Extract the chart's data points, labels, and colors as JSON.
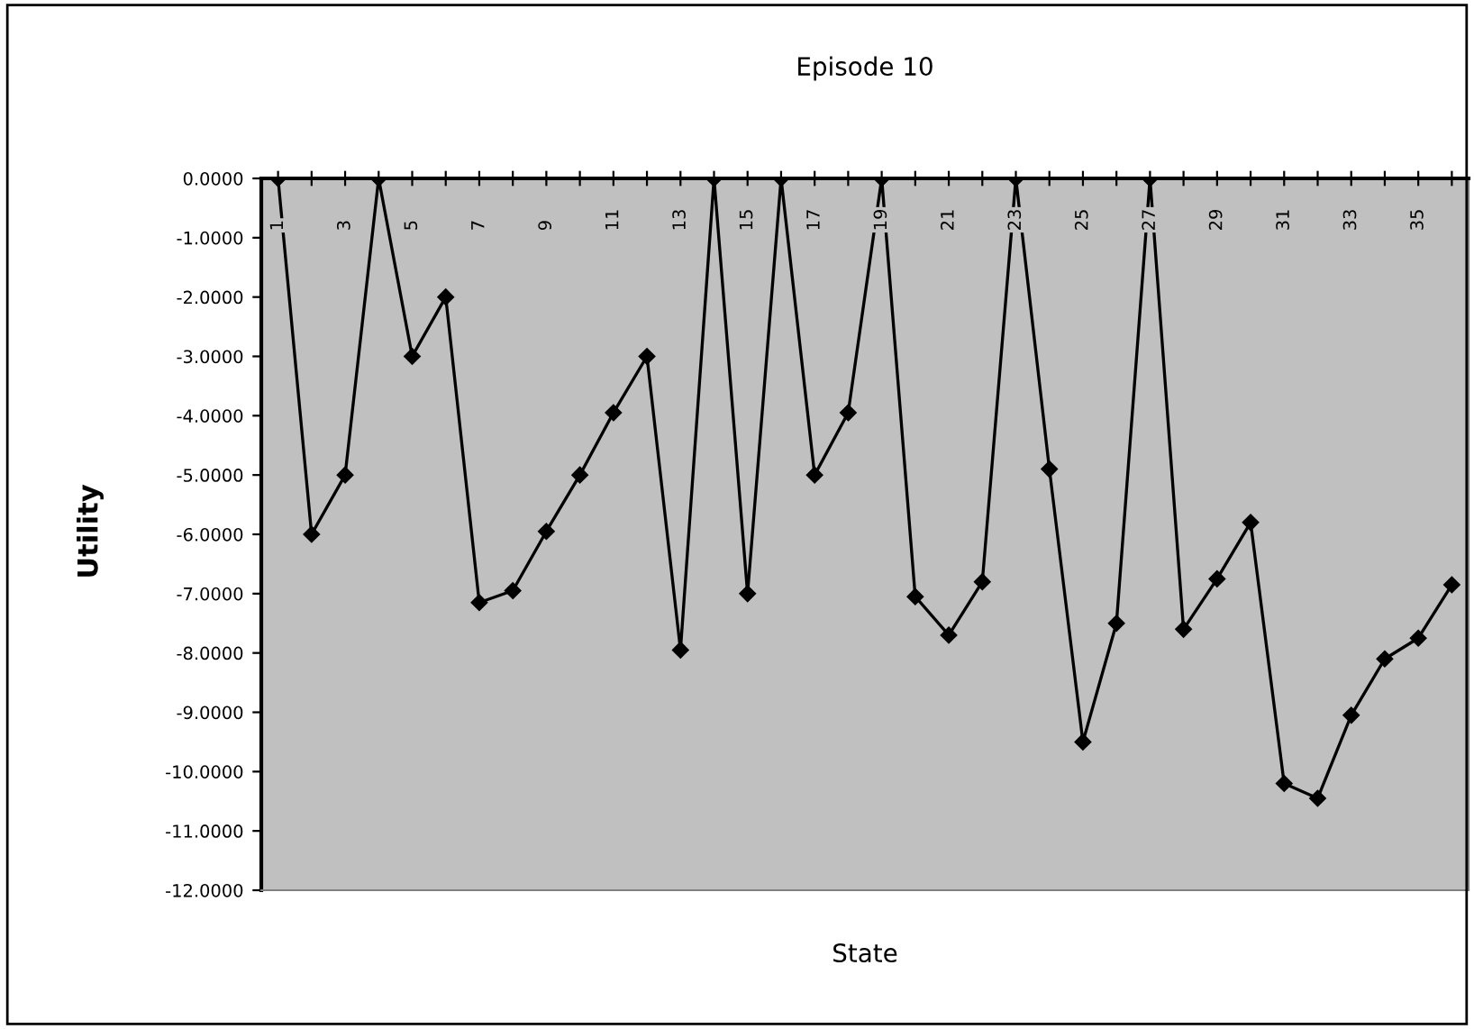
{
  "chart_data": {
    "type": "line",
    "title": "Episode 10",
    "xlabel": "State",
    "ylabel": "Utility",
    "categories": [
      "1",
      null,
      "3",
      null,
      "5",
      null,
      "7",
      null,
      "9",
      null,
      "11",
      null,
      "13",
      null,
      "15",
      null,
      "17",
      null,
      "19",
      null,
      "21",
      null,
      "23",
      null,
      "25",
      null,
      "27",
      null,
      "29",
      null,
      "31",
      null,
      "33",
      null,
      "35",
      null
    ],
    "series": [
      {
        "color": "#000000",
        "values": [
          0,
          -6,
          -5,
          0,
          -3,
          -2,
          -7.15,
          -6.95,
          -5.95,
          -5,
          -3.95,
          -3,
          -7.95,
          0,
          -7,
          0,
          -5,
          -3.95,
          0,
          -7.05,
          -7.7,
          -6.8,
          0,
          -4.9,
          -9.5,
          -7.5,
          0,
          -7.6,
          -6.75,
          -5.8,
          -10.2,
          -10.45,
          -9.05,
          -8.1,
          -7.75,
          -6.85
        ]
      }
    ],
    "ylim": [
      -12,
      0
    ],
    "yticks": [
      {
        "value": 0,
        "label": "0.0000"
      },
      {
        "value": -1,
        "label": "-1.0000"
      },
      {
        "value": -2,
        "label": "-2.0000"
      },
      {
        "value": -3,
        "label": "-3.0000"
      },
      {
        "value": -4,
        "label": "-4.0000"
      },
      {
        "value": -5,
        "label": "-5.0000"
      },
      {
        "value": -6,
        "label": "-6.0000"
      },
      {
        "value": -7,
        "label": "-7.0000"
      },
      {
        "value": -8,
        "label": "-8.0000"
      },
      {
        "value": -9,
        "label": "-9.0000"
      },
      {
        "value": -10,
        "label": "-10.0000"
      },
      {
        "value": -11,
        "label": "-11.0000"
      },
      {
        "value": -12,
        "label": "-12.0000"
      }
    ],
    "marker": "diamond",
    "line_style": "solid",
    "grid": false,
    "legend": false
  }
}
